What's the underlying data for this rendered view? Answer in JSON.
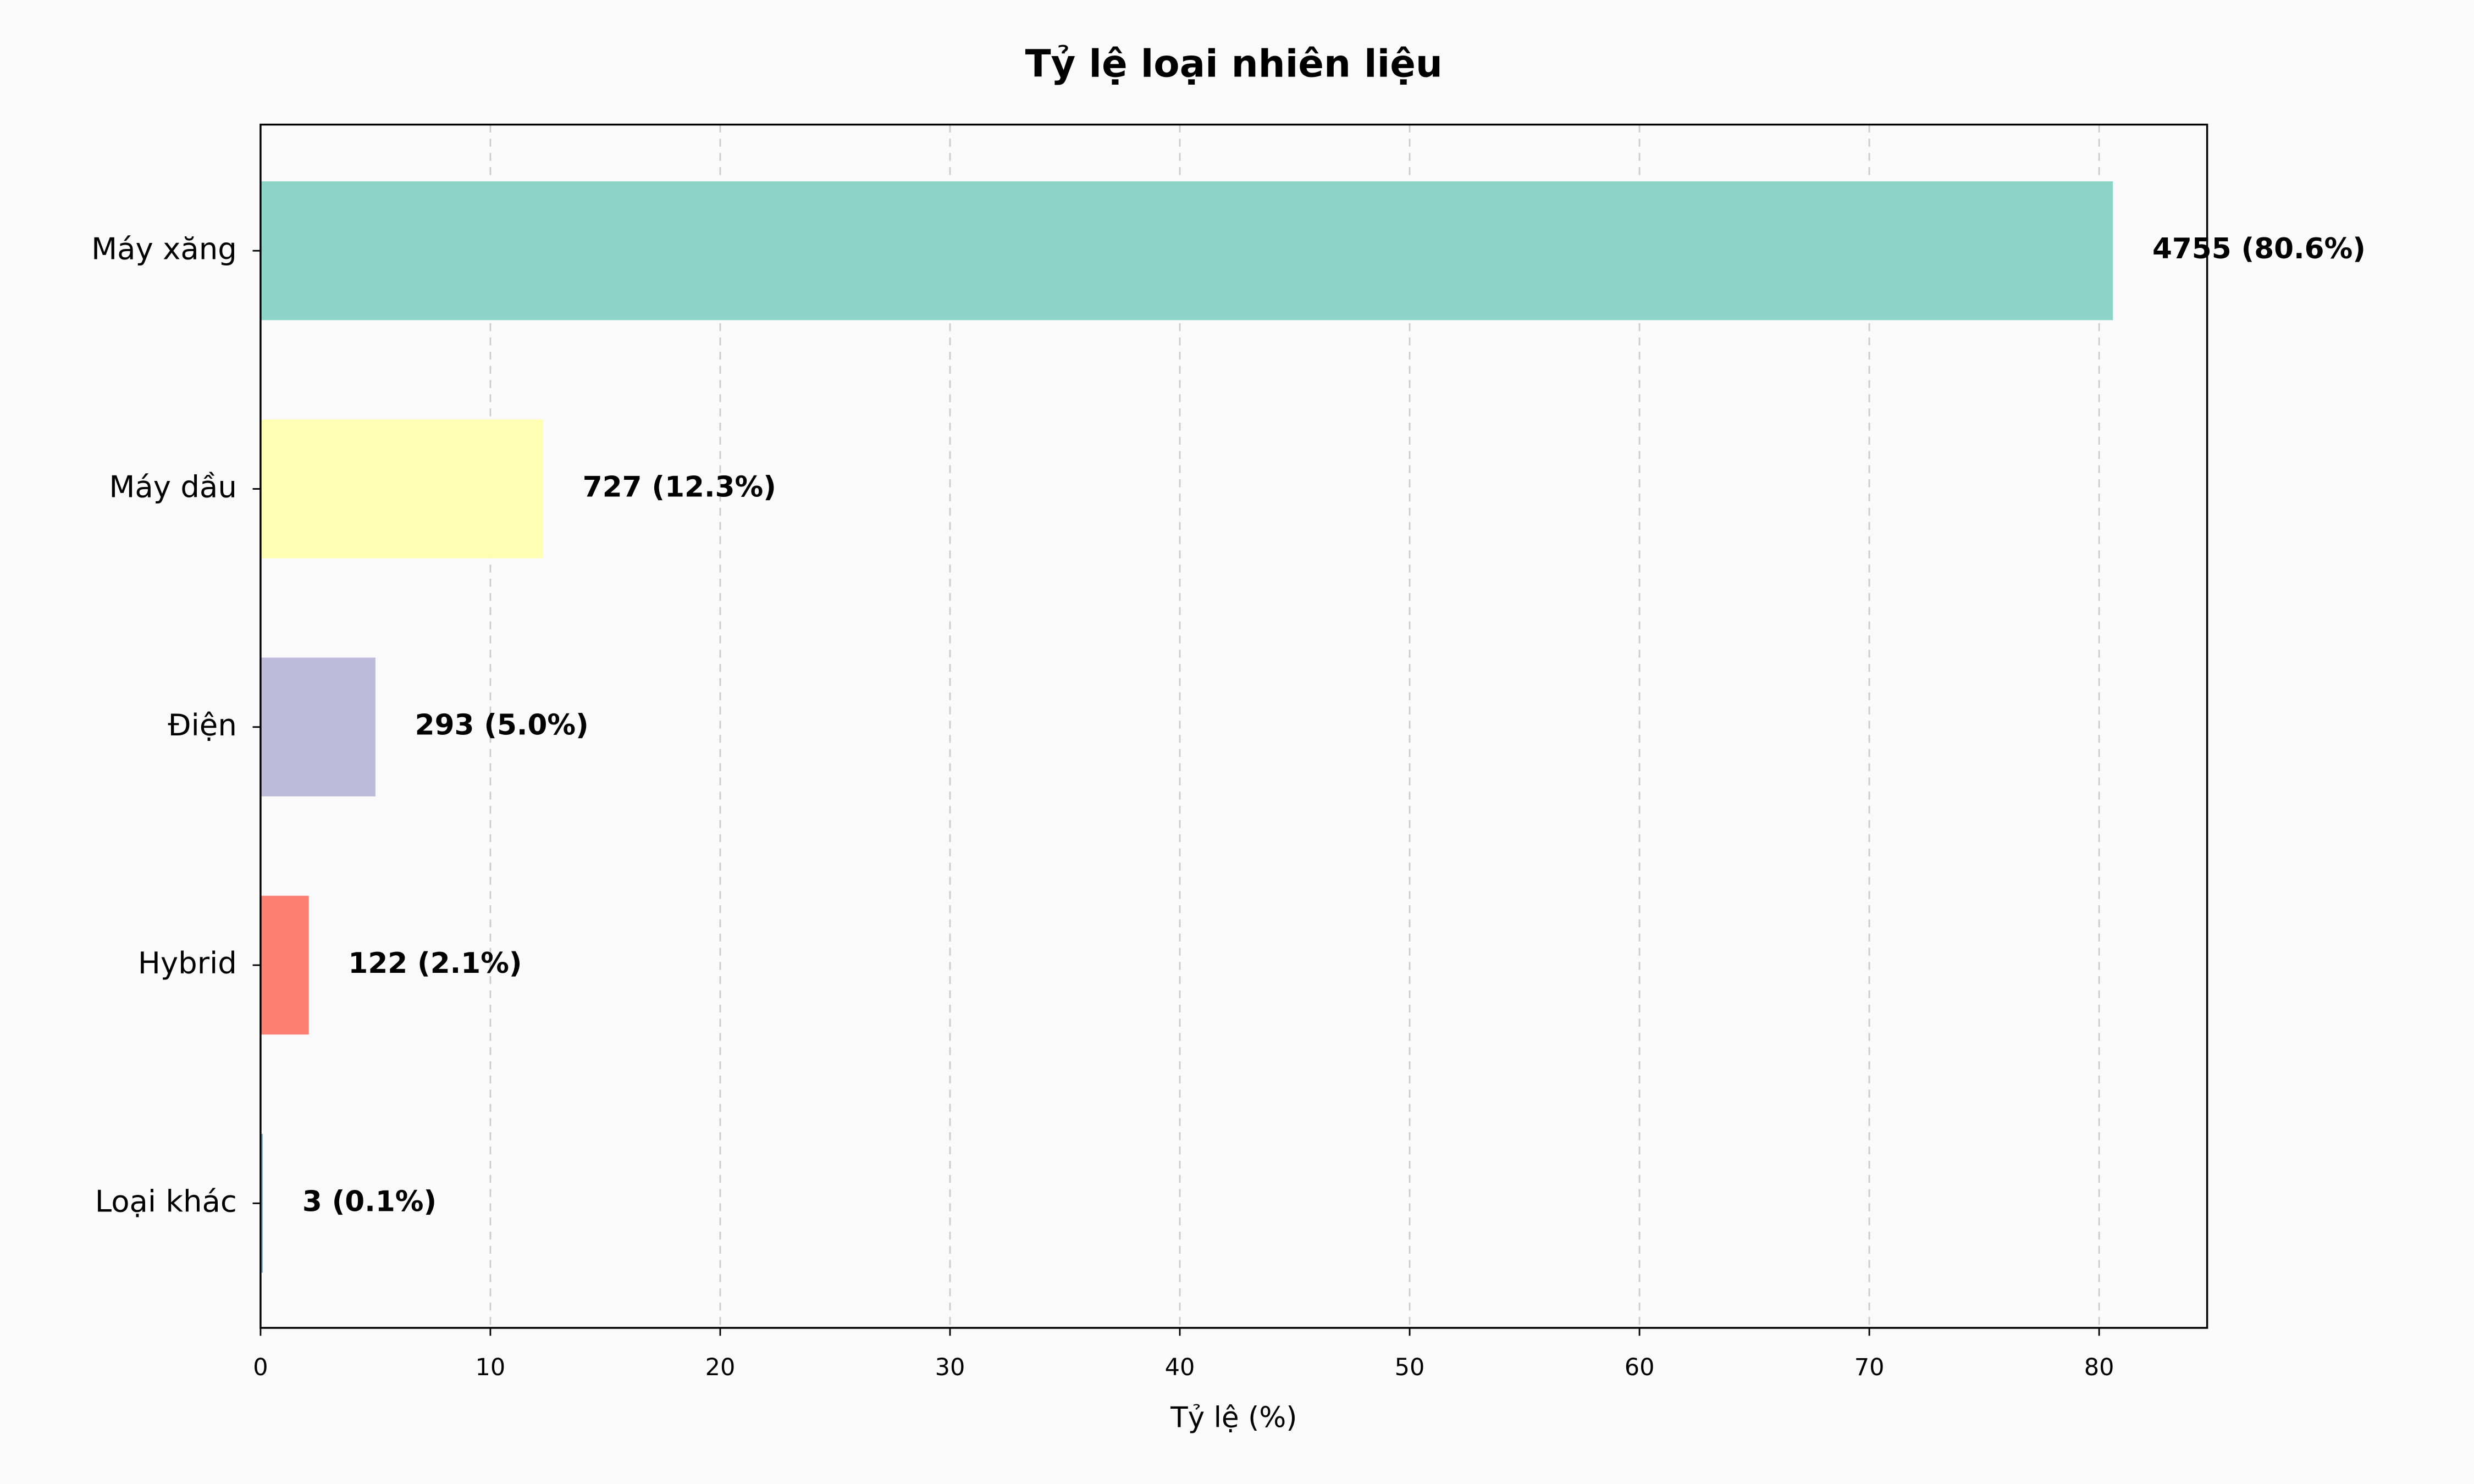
{
  "chart_data": {
    "type": "barh",
    "title": "Tỷ lệ loại nhiên liệu",
    "xlabel": "Tỷ lệ (%)",
    "categories": [
      "Máy xăng",
      "Máy dầu",
      "Điện",
      "Hybrid",
      "Loại khác"
    ],
    "values": [
      80.6,
      12.3,
      5.0,
      2.1,
      0.1
    ],
    "value_labels": [
      "4755 (80.6%)",
      "727 (12.3%)",
      "293 (5.0%)",
      "122 (2.1%)",
      "3 (0.1%)"
    ],
    "colors": [
      "#8dd3c7",
      "#ffffb3",
      "#bebada",
      "#fb8072",
      "#80b1d3"
    ],
    "xlim": [
      0,
      84.7
    ],
    "xticks": [
      0,
      10,
      20,
      30,
      40,
      50,
      60,
      70,
      80
    ],
    "grid": true
  }
}
